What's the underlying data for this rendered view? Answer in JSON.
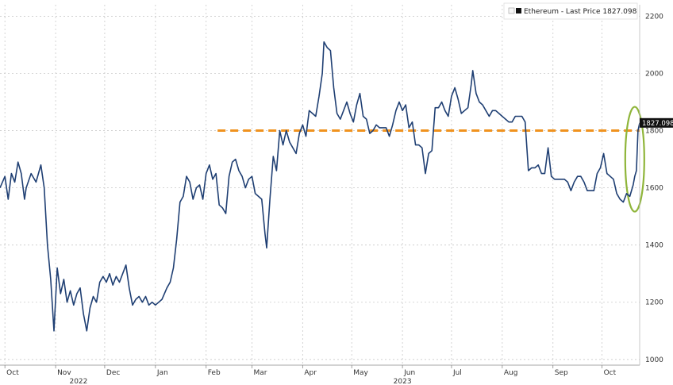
{
  "chart_data": {
    "type": "line",
    "title": "",
    "xlabel": "",
    "ylabel": "",
    "ylim": [
      980,
      2240
    ],
    "x_range": [
      "2022-09-28",
      "2023-10-24"
    ],
    "y_ticks": [
      {
        "value": 1000,
        "label": "1000"
      },
      {
        "value": 1200,
        "label": "1200"
      },
      {
        "value": 1400,
        "label": "1400"
      },
      {
        "value": 1600,
        "label": "1600"
      },
      {
        "value": 1800,
        "label": "1800"
      },
      {
        "value": 2000,
        "label": "2000"
      },
      {
        "value": 2200,
        "label": "2200"
      }
    ],
    "x_ticks": [
      {
        "date": "2022-10-01",
        "label": "Oct"
      },
      {
        "date": "2022-11-01",
        "label": "Nov"
      },
      {
        "date": "2022-12-01",
        "label": "Dec"
      },
      {
        "date": "2023-01-01",
        "label": "Jan"
      },
      {
        "date": "2023-02-01",
        "label": "Feb"
      },
      {
        "date": "2023-03-01",
        "label": "Mar"
      },
      {
        "date": "2023-04-01",
        "label": "Apr"
      },
      {
        "date": "2023-05-01",
        "label": "May"
      },
      {
        "date": "2023-06-01",
        "label": "Jun"
      },
      {
        "date": "2023-07-01",
        "label": "Jul"
      },
      {
        "date": "2023-08-01",
        "label": "Aug"
      },
      {
        "date": "2023-09-01",
        "label": "Sep"
      },
      {
        "date": "2023-10-01",
        "label": "Oct"
      }
    ],
    "year_labels": [
      {
        "date": "2022-11-15",
        "label": "2022"
      },
      {
        "date": "2023-06-01",
        "label": "2023"
      }
    ],
    "grid": true,
    "legend_position": "top-right",
    "legend_label": "Ethereum - Last Price 1827.098",
    "last_price_label": "1827.098",
    "series": [
      {
        "name": "Ethereum - Last Price",
        "color": "#1f3f73",
        "points": [
          [
            "2022-09-28",
            1600
          ],
          [
            "2022-10-01",
            1640
          ],
          [
            "2022-10-03",
            1560
          ],
          [
            "2022-10-05",
            1650
          ],
          [
            "2022-10-07",
            1620
          ],
          [
            "2022-10-09",
            1690
          ],
          [
            "2022-10-11",
            1650
          ],
          [
            "2022-10-13",
            1560
          ],
          [
            "2022-10-14",
            1600
          ],
          [
            "2022-10-17",
            1650
          ],
          [
            "2022-10-20",
            1620
          ],
          [
            "2022-10-23",
            1680
          ],
          [
            "2022-10-25",
            1600
          ],
          [
            "2022-10-27",
            1400
          ],
          [
            "2022-10-29",
            1280
          ],
          [
            "2022-10-31",
            1100
          ],
          [
            "2022-11-02",
            1320
          ],
          [
            "2022-11-04",
            1230
          ],
          [
            "2022-11-06",
            1280
          ],
          [
            "2022-11-08",
            1200
          ],
          [
            "2022-11-10",
            1240
          ],
          [
            "2022-11-12",
            1190
          ],
          [
            "2022-11-14",
            1230
          ],
          [
            "2022-11-16",
            1250
          ],
          [
            "2022-11-18",
            1160
          ],
          [
            "2022-11-20",
            1100
          ],
          [
            "2022-11-22",
            1180
          ],
          [
            "2022-11-24",
            1220
          ],
          [
            "2022-11-26",
            1200
          ],
          [
            "2022-11-28",
            1270
          ],
          [
            "2022-11-30",
            1290
          ],
          [
            "2022-12-02",
            1270
          ],
          [
            "2022-12-04",
            1300
          ],
          [
            "2022-12-06",
            1260
          ],
          [
            "2022-12-08",
            1290
          ],
          [
            "2022-12-10",
            1270
          ],
          [
            "2022-12-12",
            1300
          ],
          [
            "2022-12-14",
            1330
          ],
          [
            "2022-12-16",
            1250
          ],
          [
            "2022-12-18",
            1190
          ],
          [
            "2022-12-20",
            1210
          ],
          [
            "2022-12-22",
            1220
          ],
          [
            "2022-12-24",
            1200
          ],
          [
            "2022-12-26",
            1220
          ],
          [
            "2022-12-28",
            1190
          ],
          [
            "2022-12-30",
            1200
          ],
          [
            "2023-01-01",
            1190
          ],
          [
            "2023-01-03",
            1200
          ],
          [
            "2023-01-05",
            1210
          ],
          [
            "2023-01-08",
            1250
          ],
          [
            "2023-01-10",
            1270
          ],
          [
            "2023-01-12",
            1320
          ],
          [
            "2023-01-14",
            1420
          ],
          [
            "2023-01-16",
            1550
          ],
          [
            "2023-01-18",
            1570
          ],
          [
            "2023-01-20",
            1640
          ],
          [
            "2023-01-22",
            1620
          ],
          [
            "2023-01-24",
            1560
          ],
          [
            "2023-01-26",
            1600
          ],
          [
            "2023-01-28",
            1610
          ],
          [
            "2023-01-30",
            1560
          ],
          [
            "2023-02-01",
            1650
          ],
          [
            "2023-02-03",
            1680
          ],
          [
            "2023-02-05",
            1630
          ],
          [
            "2023-02-07",
            1650
          ],
          [
            "2023-02-09",
            1540
          ],
          [
            "2023-02-11",
            1530
          ],
          [
            "2023-02-13",
            1510
          ],
          [
            "2023-02-15",
            1640
          ],
          [
            "2023-02-17",
            1690
          ],
          [
            "2023-02-19",
            1700
          ],
          [
            "2023-02-21",
            1660
          ],
          [
            "2023-02-23",
            1640
          ],
          [
            "2023-02-25",
            1600
          ],
          [
            "2023-02-27",
            1630
          ],
          [
            "2023-03-01",
            1640
          ],
          [
            "2023-03-03",
            1580
          ],
          [
            "2023-03-05",
            1570
          ],
          [
            "2023-03-07",
            1560
          ],
          [
            "2023-03-09",
            1440
          ],
          [
            "2023-03-10",
            1390
          ],
          [
            "2023-03-12",
            1560
          ],
          [
            "2023-03-14",
            1710
          ],
          [
            "2023-03-16",
            1660
          ],
          [
            "2023-03-18",
            1800
          ],
          [
            "2023-03-20",
            1750
          ],
          [
            "2023-03-22",
            1800
          ],
          [
            "2023-03-24",
            1760
          ],
          [
            "2023-03-26",
            1740
          ],
          [
            "2023-03-28",
            1720
          ],
          [
            "2023-03-30",
            1790
          ],
          [
            "2023-04-01",
            1820
          ],
          [
            "2023-04-03",
            1780
          ],
          [
            "2023-04-05",
            1870
          ],
          [
            "2023-04-07",
            1860
          ],
          [
            "2023-04-09",
            1850
          ],
          [
            "2023-04-11",
            1920
          ],
          [
            "2023-04-13",
            2000
          ],
          [
            "2023-04-14",
            2110
          ],
          [
            "2023-04-16",
            2090
          ],
          [
            "2023-04-18",
            2080
          ],
          [
            "2023-04-20",
            1950
          ],
          [
            "2023-04-22",
            1860
          ],
          [
            "2023-04-24",
            1840
          ],
          [
            "2023-04-26",
            1870
          ],
          [
            "2023-04-28",
            1900
          ],
          [
            "2023-04-30",
            1860
          ],
          [
            "2023-05-02",
            1830
          ],
          [
            "2023-05-04",
            1890
          ],
          [
            "2023-05-06",
            1930
          ],
          [
            "2023-05-08",
            1850
          ],
          [
            "2023-05-10",
            1840
          ],
          [
            "2023-05-12",
            1790
          ],
          [
            "2023-05-14",
            1800
          ],
          [
            "2023-05-16",
            1820
          ],
          [
            "2023-05-18",
            1810
          ],
          [
            "2023-05-20",
            1810
          ],
          [
            "2023-05-22",
            1810
          ],
          [
            "2023-05-24",
            1780
          ],
          [
            "2023-05-26",
            1820
          ],
          [
            "2023-05-28",
            1870
          ],
          [
            "2023-05-30",
            1900
          ],
          [
            "2023-06-01",
            1870
          ],
          [
            "2023-06-03",
            1890
          ],
          [
            "2023-06-05",
            1810
          ],
          [
            "2023-06-07",
            1830
          ],
          [
            "2023-06-09",
            1750
          ],
          [
            "2023-06-11",
            1750
          ],
          [
            "2023-06-13",
            1740
          ],
          [
            "2023-06-15",
            1650
          ],
          [
            "2023-06-17",
            1720
          ],
          [
            "2023-06-19",
            1730
          ],
          [
            "2023-06-21",
            1880
          ],
          [
            "2023-06-23",
            1880
          ],
          [
            "2023-06-25",
            1900
          ],
          [
            "2023-06-27",
            1870
          ],
          [
            "2023-06-29",
            1850
          ],
          [
            "2023-07-01",
            1920
          ],
          [
            "2023-07-03",
            1950
          ],
          [
            "2023-07-05",
            1910
          ],
          [
            "2023-07-07",
            1860
          ],
          [
            "2023-07-09",
            1870
          ],
          [
            "2023-07-11",
            1880
          ],
          [
            "2023-07-13",
            1960
          ],
          [
            "2023-07-14",
            2010
          ],
          [
            "2023-07-16",
            1930
          ],
          [
            "2023-07-18",
            1900
          ],
          [
            "2023-07-20",
            1890
          ],
          [
            "2023-07-22",
            1870
          ],
          [
            "2023-07-24",
            1850
          ],
          [
            "2023-07-26",
            1870
          ],
          [
            "2023-07-28",
            1870
          ],
          [
            "2023-07-30",
            1860
          ],
          [
            "2023-08-01",
            1850
          ],
          [
            "2023-08-03",
            1840
          ],
          [
            "2023-08-05",
            1830
          ],
          [
            "2023-08-07",
            1830
          ],
          [
            "2023-08-09",
            1850
          ],
          [
            "2023-08-11",
            1850
          ],
          [
            "2023-08-13",
            1850
          ],
          [
            "2023-08-15",
            1830
          ],
          [
            "2023-08-17",
            1660
          ],
          [
            "2023-08-19",
            1670
          ],
          [
            "2023-08-21",
            1670
          ],
          [
            "2023-08-23",
            1680
          ],
          [
            "2023-08-25",
            1650
          ],
          [
            "2023-08-27",
            1650
          ],
          [
            "2023-08-29",
            1740
          ],
          [
            "2023-08-31",
            1640
          ],
          [
            "2023-09-02",
            1630
          ],
          [
            "2023-09-04",
            1630
          ],
          [
            "2023-09-06",
            1630
          ],
          [
            "2023-09-08",
            1630
          ],
          [
            "2023-09-10",
            1620
          ],
          [
            "2023-09-12",
            1590
          ],
          [
            "2023-09-14",
            1620
          ],
          [
            "2023-09-16",
            1640
          ],
          [
            "2023-09-18",
            1640
          ],
          [
            "2023-09-20",
            1620
          ],
          [
            "2023-09-22",
            1590
          ],
          [
            "2023-09-24",
            1590
          ],
          [
            "2023-09-26",
            1590
          ],
          [
            "2023-09-28",
            1650
          ],
          [
            "2023-09-30",
            1670
          ],
          [
            "2023-10-02",
            1720
          ],
          [
            "2023-10-04",
            1650
          ],
          [
            "2023-10-06",
            1640
          ],
          [
            "2023-10-08",
            1630
          ],
          [
            "2023-10-10",
            1580
          ],
          [
            "2023-10-12",
            1560
          ],
          [
            "2023-10-14",
            1550
          ],
          [
            "2023-10-16",
            1580
          ],
          [
            "2023-10-18",
            1570
          ],
          [
            "2023-10-20",
            1610
          ],
          [
            "2023-10-21",
            1640
          ],
          [
            "2023-10-22",
            1660
          ],
          [
            "2023-10-23",
            1800
          ],
          [
            "2023-10-24",
            1827
          ]
        ]
      }
    ],
    "annotations": [
      {
        "type": "hline",
        "value": 1800,
        "from_date": "2023-02-08",
        "color": "#f0921e",
        "style": "dashed"
      },
      {
        "type": "ellipse",
        "center_date": "2023-10-21",
        "center_value": 1700,
        "color": "#8fb53a"
      }
    ]
  }
}
